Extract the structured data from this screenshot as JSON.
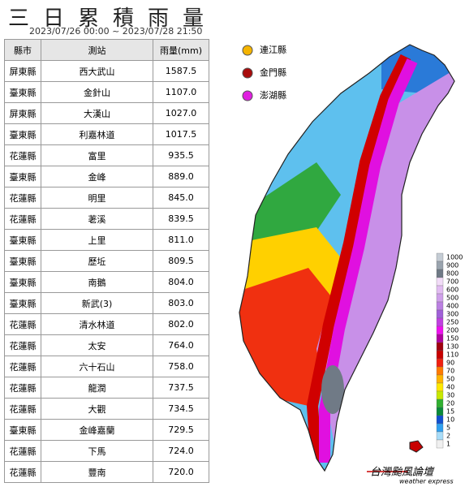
{
  "title": "三日累積雨量",
  "date_range": "2023/07/26 00:00 ~ 2023/07/28 21:50",
  "table": {
    "headers": [
      "縣市",
      "測站",
      "雨量(mm)"
    ],
    "rows": [
      [
        "屏東縣",
        "西大武山",
        "1587.5"
      ],
      [
        "臺東縣",
        "金針山",
        "1107.0"
      ],
      [
        "屏東縣",
        "大漢山",
        "1027.0"
      ],
      [
        "臺東縣",
        "利嘉林道",
        "1017.5"
      ],
      [
        "花蓮縣",
        "富里",
        "935.5"
      ],
      [
        "臺東縣",
        "金峰",
        "889.0"
      ],
      [
        "花蓮縣",
        "明里",
        "845.0"
      ],
      [
        "花蓮縣",
        "荖溪",
        "839.5"
      ],
      [
        "臺東縣",
        "上里",
        "811.0"
      ],
      [
        "臺東縣",
        "歷坵",
        "809.5"
      ],
      [
        "臺東縣",
        "南鵝",
        "804.0"
      ],
      [
        "臺東縣",
        "新武(3)",
        "803.0"
      ],
      [
        "花蓮縣",
        "清水林道",
        "802.0"
      ],
      [
        "花蓮縣",
        "太安",
        "764.0"
      ],
      [
        "花蓮縣",
        "六十石山",
        "758.0"
      ],
      [
        "花蓮縣",
        "龍潤",
        "737.5"
      ],
      [
        "花蓮縣",
        "大觀",
        "734.5"
      ],
      [
        "臺東縣",
        "金峰嘉蘭",
        "729.5"
      ],
      [
        "花蓮縣",
        "下馬",
        "724.0"
      ],
      [
        "花蓮縣",
        "豐南",
        "720.0"
      ]
    ]
  },
  "map_legend": [
    {
      "label": "連江縣",
      "color": "#f5b400"
    },
    {
      "label": "金門縣",
      "color": "#a80c0c"
    },
    {
      "label": "澎湖縣",
      "color": "#e020e0"
    }
  ],
  "scale": {
    "labels": [
      1000,
      900,
      800,
      700,
      600,
      500,
      400,
      300,
      250,
      200,
      150,
      130,
      110,
      90,
      70,
      50,
      40,
      30,
      20,
      15,
      10,
      5,
      2,
      1
    ],
    "colors": [
      "#c4ccd4",
      "#9aa4ae",
      "#6f7a86",
      "#f2dcf8",
      "#e2bcf2",
      "#cfa0ea",
      "#bb80e2",
      "#a060d8",
      "#c040e0",
      "#ee10ee",
      "#b000a0",
      "#a00010",
      "#c80000",
      "#f02010",
      "#ff7a00",
      "#ffb400",
      "#ffe800",
      "#c8e800",
      "#30b030",
      "#0a8a3a",
      "#1050d0",
      "#30a0f0",
      "#a8dcf8",
      "#f0f0f0"
    ]
  },
  "watermark": {
    "title": "台灣颱風論壇",
    "subtitle": "weather express"
  }
}
